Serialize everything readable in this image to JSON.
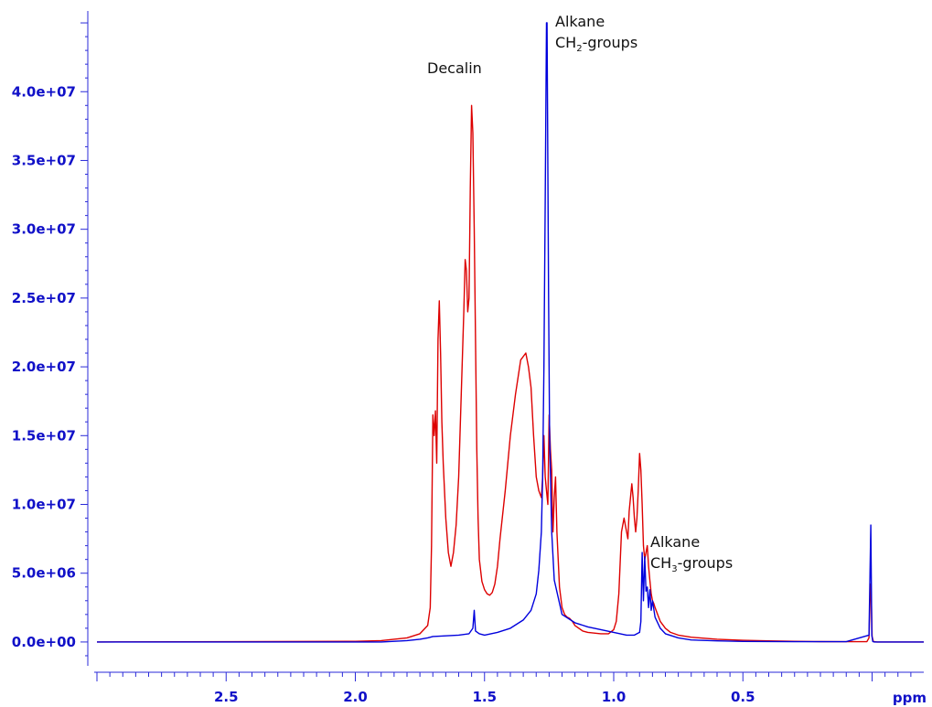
{
  "chart_data": {
    "type": "line",
    "title": "",
    "xlabel": "ppm",
    "ylabel": "",
    "xlim": [
      3.0,
      -0.2
    ],
    "x_reversed": true,
    "ylim": [
      -2000000,
      46000000
    ],
    "x_ticks": [
      2.5,
      2.0,
      1.5,
      1.0,
      0.5
    ],
    "x_tick_labels": [
      "2.5",
      "2.0",
      "1.5",
      "1.0",
      "0.5"
    ],
    "y_ticks": [
      0,
      5000000,
      10000000,
      15000000,
      20000000,
      25000000,
      30000000,
      35000000,
      40000000
    ],
    "y_tick_labels": [
      "0.0e+00",
      "5.0e+06",
      "1.0e+07",
      "1.5e+07",
      "2.0e+07",
      "2.5e+07",
      "3.0e+07",
      "3.5e+07",
      "4.0e+07"
    ],
    "colors": {
      "blue_series": "#0000dd",
      "red_series": "#dd0000",
      "axis": "#2a2ad8"
    },
    "series": [
      {
        "color": "#0000dd",
        "x": [
          3.0,
          1.9,
          1.8,
          1.75,
          1.72,
          1.7,
          1.6,
          1.56,
          1.545,
          1.54,
          1.535,
          1.52,
          1.5,
          1.45,
          1.4,
          1.35,
          1.32,
          1.3,
          1.29,
          1.28,
          1.275,
          1.27,
          1.265,
          1.26,
          1.258,
          1.256,
          1.252,
          1.248,
          1.24,
          1.23,
          1.2,
          1.15,
          1.1,
          1.05,
          1.0,
          0.95,
          0.92,
          0.9,
          0.895,
          0.89,
          0.885,
          0.88,
          0.875,
          0.87,
          0.865,
          0.86,
          0.855,
          0.85,
          0.84,
          0.82,
          0.8,
          0.75,
          0.7,
          0.6,
          0.5,
          0.3,
          0.1,
          0.012,
          0.005,
          0.001,
          -0.003,
          -0.01,
          -0.2
        ],
        "values": [
          0,
          0,
          100000,
          200000,
          300000,
          400000,
          500000,
          600000,
          1000000,
          2300000,
          800000,
          600000,
          500000,
          700000,
          1000000,
          1600000,
          2300000,
          3500000,
          5200000,
          8000000,
          12000000,
          20000000,
          32000000,
          45000000,
          45000000,
          38000000,
          25000000,
          15000000,
          8000000,
          4500000,
          2000000,
          1400000,
          1100000,
          900000,
          700000,
          500000,
          500000,
          700000,
          1500000,
          6500000,
          3000000,
          6200000,
          3700000,
          4000000,
          2500000,
          3800000,
          2300000,
          3000000,
          1800000,
          1000000,
          600000,
          300000,
          150000,
          80000,
          40000,
          20000,
          20000,
          500000,
          8500000,
          500000,
          30000,
          0,
          0
        ]
      },
      {
        "color": "#dd0000",
        "x": [
          3.0,
          2.0,
          1.9,
          1.8,
          1.75,
          1.72,
          1.71,
          1.705,
          1.7,
          1.695,
          1.69,
          1.685,
          1.68,
          1.675,
          1.67,
          1.665,
          1.66,
          1.65,
          1.64,
          1.63,
          1.62,
          1.61,
          1.6,
          1.59,
          1.58,
          1.575,
          1.57,
          1.565,
          1.56,
          1.555,
          1.55,
          1.545,
          1.54,
          1.535,
          1.53,
          1.525,
          1.52,
          1.51,
          1.5,
          1.49,
          1.48,
          1.47,
          1.46,
          1.45,
          1.44,
          1.42,
          1.4,
          1.38,
          1.36,
          1.34,
          1.33,
          1.32,
          1.31,
          1.3,
          1.29,
          1.28,
          1.275,
          1.27,
          1.265,
          1.26,
          1.255,
          1.25,
          1.245,
          1.24,
          1.235,
          1.23,
          1.225,
          1.22,
          1.21,
          1.2,
          1.19,
          1.18,
          1.17,
          1.16,
          1.15,
          1.12,
          1.1,
          1.05,
          1.02,
          1.0,
          0.99,
          0.98,
          0.97,
          0.96,
          0.955,
          0.95,
          0.945,
          0.94,
          0.93,
          0.925,
          0.92,
          0.915,
          0.91,
          0.905,
          0.9,
          0.895,
          0.89,
          0.885,
          0.88,
          0.875,
          0.87,
          0.865,
          0.86,
          0.855,
          0.85,
          0.845,
          0.84,
          0.83,
          0.82,
          0.8,
          0.78,
          0.75,
          0.7,
          0.6,
          0.5,
          0.4,
          0.3,
          0.2,
          0.1,
          0.02,
          0.012,
          0.006,
          0.003,
          0.0,
          -0.005,
          -0.02,
          -0.2
        ],
        "values": [
          0,
          50000,
          100000,
          300000,
          600000,
          1200000,
          2500000,
          7000000,
          16500000,
          15000000,
          16800000,
          13000000,
          22000000,
          24800000,
          21000000,
          16000000,
          13000000,
          9000000,
          6500000,
          5500000,
          6500000,
          8500000,
          12000000,
          18000000,
          24000000,
          27800000,
          27000000,
          24000000,
          25000000,
          33000000,
          39000000,
          37000000,
          30000000,
          22000000,
          14000000,
          9000000,
          6000000,
          4400000,
          3800000,
          3500000,
          3400000,
          3600000,
          4200000,
          5500000,
          7500000,
          11000000,
          15000000,
          18000000,
          20500000,
          21000000,
          20000000,
          18500000,
          15000000,
          12000000,
          11000000,
          10500000,
          12000000,
          15000000,
          12000000,
          11000000,
          10000000,
          16500000,
          14000000,
          12500000,
          8000000,
          10500000,
          12000000,
          8000000,
          4000000,
          2500000,
          2000000,
          1800000,
          1700000,
          1500000,
          1200000,
          800000,
          700000,
          600000,
          600000,
          900000,
          1500000,
          3500000,
          8000000,
          9000000,
          8500000,
          8000000,
          7500000,
          9500000,
          11500000,
          10500000,
          9000000,
          8000000,
          9000000,
          11000000,
          13700000,
          12500000,
          10000000,
          7000000,
          6000000,
          6500000,
          7000000,
          5500000,
          4500000,
          3500000,
          3000000,
          2800000,
          2500000,
          2000000,
          1500000,
          1000000,
          700000,
          500000,
          350000,
          200000,
          120000,
          80000,
          50000,
          30000,
          20000,
          20000,
          300000,
          4200000,
          3000000,
          400000,
          30000,
          0,
          0
        ]
      }
    ],
    "annotations": [
      {
        "text": "Decalin",
        "x": 1.78,
        "y": 41200000
      },
      {
        "lines": [
          "Alkane",
          "CH",
          "2",
          "-groups"
        ],
        "x": 1.245,
        "y": 44400000
      },
      {
        "lines": [
          "Alkane",
          "CH",
          "3",
          "-groups"
        ],
        "x": 0.85,
        "y": 6500000
      }
    ]
  }
}
